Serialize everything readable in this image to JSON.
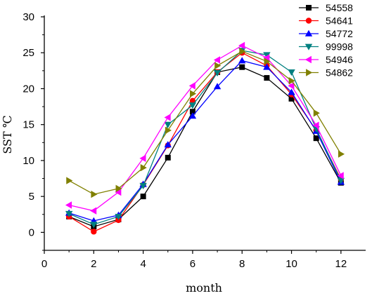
{
  "chart_data": {
    "type": "line",
    "xlabel": "month",
    "ylabel": "SST ℃",
    "xlim": [
      0,
      13
    ],
    "ylim": [
      -2.5,
      30
    ],
    "xticks": [
      0,
      2,
      4,
      6,
      8,
      10,
      12
    ],
    "yticks": [
      0,
      5,
      10,
      15,
      20,
      25,
      30
    ],
    "x": [
      1,
      2,
      3,
      4,
      5,
      6,
      7,
      8,
      9,
      10,
      11,
      12
    ],
    "legend_position": "top-right",
    "grid": false,
    "series": [
      {
        "name": "54558",
        "color": "#000000",
        "marker": "square",
        "values": [
          2.2,
          0.8,
          1.8,
          5.0,
          10.4,
          16.8,
          22.3,
          23.0,
          21.5,
          18.6,
          13.1,
          6.9
        ]
      },
      {
        "name": "54641",
        "color": "#ff0000",
        "marker": "circle",
        "values": [
          2.2,
          0.1,
          1.7,
          6.6,
          12.1,
          18.3,
          22.3,
          25.0,
          23.2,
          19.2,
          14.2,
          7.4
        ]
      },
      {
        "name": "54772",
        "color": "#0000ff",
        "marker": "triangle-up",
        "values": [
          2.7,
          1.6,
          2.4,
          6.7,
          12.2,
          16.2,
          20.3,
          23.9,
          23.0,
          19.5,
          14.1,
          7.0
        ]
      },
      {
        "name": "99998",
        "color": "#008080",
        "marker": "triangle-down",
        "values": [
          2.6,
          1.1,
          2.2,
          6.5,
          15.0,
          17.7,
          22.2,
          25.3,
          24.7,
          22.3,
          14.4,
          7.2
        ]
      },
      {
        "name": "54946",
        "color": "#ff00ff",
        "marker": "triangle-left",
        "values": [
          3.8,
          3.0,
          5.6,
          10.3,
          16.0,
          20.4,
          24.0,
          26.0,
          24.3,
          20.4,
          14.9,
          7.9
        ]
      },
      {
        "name": "54862",
        "color": "#808000",
        "marker": "triangle-right",
        "values": [
          7.2,
          5.3,
          6.1,
          9.0,
          14.2,
          19.3,
          23.2,
          25.2,
          23.8,
          21.1,
          16.6,
          10.9
        ]
      }
    ]
  }
}
